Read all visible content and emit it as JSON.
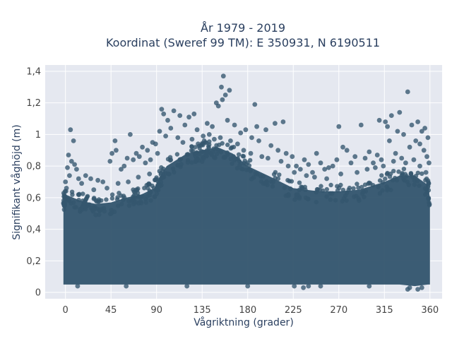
{
  "chart_data": {
    "type": "scatter",
    "title": "År 1979 - 2019",
    "subtitle": "Koordinat (Sweref 99 TM): E 350931, N 6190511",
    "xlabel": "Vågriktning (grader)",
    "ylabel": "Signifikant våghöjd (m)",
    "xlim": [
      -20,
      372
    ],
    "ylim": [
      -0.04,
      1.44
    ],
    "xticks": [
      0,
      45,
      90,
      135,
      180,
      225,
      270,
      315,
      360
    ],
    "xtick_labels": [
      "0",
      "45",
      "90",
      "135",
      "180",
      "225",
      "270",
      "315",
      "360"
    ],
    "yticks": [
      0,
      0.2,
      0.4,
      0.6,
      0.8,
      1,
      1.2,
      1.4
    ],
    "ytick_labels": [
      "0",
      "0,2",
      "0,4",
      "0,6",
      "0,8",
      "1",
      "1,2",
      "1,4"
    ],
    "grid": true,
    "legend": "none",
    "marker_color": "#34566e",
    "plot_background": "#e5e8f0",
    "dense_band": {
      "x": [
        -2,
        0,
        15,
        30,
        45,
        60,
        75,
        88,
        92,
        100,
        120,
        135,
        150,
        165,
        180,
        200,
        225,
        250,
        270,
        290,
        315,
        330,
        345,
        358,
        360
      ],
      "lower": [
        0.05,
        0.05,
        0.05,
        0.05,
        0.05,
        0.05,
        0.05,
        0.05,
        0.05,
        0.05,
        0.05,
        0.05,
        0.05,
        0.05,
        0.05,
        0.05,
        0.05,
        0.05,
        0.05,
        0.05,
        0.05,
        0.05,
        0.04,
        0.05,
        0.05
      ],
      "upper": [
        0.58,
        0.62,
        0.58,
        0.56,
        0.57,
        0.6,
        0.62,
        0.66,
        0.72,
        0.8,
        0.88,
        0.9,
        0.92,
        0.88,
        0.8,
        0.74,
        0.66,
        0.64,
        0.64,
        0.65,
        0.7,
        0.74,
        0.74,
        0.68,
        0.6
      ]
    },
    "points": [
      [
        156,
        1.37
      ],
      [
        154,
        1.3
      ],
      [
        162,
        1.28
      ],
      [
        158,
        1.25
      ],
      [
        155,
        1.22
      ],
      [
        149,
        1.2
      ],
      [
        151,
        1.18
      ],
      [
        187,
        1.19
      ],
      [
        338,
        1.27
      ],
      [
        330,
        1.14
      ],
      [
        322,
        1.12
      ],
      [
        348,
        1.08
      ],
      [
        342,
        1.06
      ],
      [
        352,
        1.02
      ],
      [
        355,
        1.04
      ],
      [
        358,
        0.98
      ],
      [
        310,
        1.09
      ],
      [
        316,
        1.08
      ],
      [
        318,
        1.05
      ],
      [
        292,
        1.06
      ],
      [
        270,
        1.05
      ],
      [
        328,
        1.02
      ],
      [
        334,
        1.0
      ],
      [
        320,
        0.96
      ],
      [
        107,
        1.15
      ],
      [
        113,
        1.12
      ],
      [
        95,
        1.16
      ],
      [
        97,
        1.13
      ],
      [
        122,
        1.11
      ],
      [
        127,
        1.13
      ],
      [
        118,
        1.06
      ],
      [
        104,
        1.04
      ],
      [
        101,
        1.09
      ],
      [
        130,
        1.03
      ],
      [
        140,
        1.07
      ],
      [
        145,
        1.05
      ],
      [
        160,
        1.09
      ],
      [
        167,
        1.06
      ],
      [
        173,
        1.01
      ],
      [
        178,
        1.03
      ],
      [
        184,
        0.98
      ],
      [
        189,
        1.05
      ],
      [
        198,
        1.03
      ],
      [
        207,
        1.07
      ],
      [
        215,
        1.08
      ],
      [
        191,
        0.96
      ],
      [
        203,
        0.93
      ],
      [
        210,
        0.9
      ],
      [
        218,
        0.88
      ],
      [
        5,
        1.03
      ],
      [
        8,
        0.96
      ],
      [
        3,
        0.87
      ],
      [
        6,
        0.83
      ],
      [
        9,
        0.81
      ],
      [
        2,
        0.79
      ],
      [
        11,
        0.78
      ],
      [
        4,
        0.74
      ],
      [
        13,
        0.72
      ],
      [
        20,
        0.74
      ],
      [
        25,
        0.72
      ],
      [
        32,
        0.71
      ],
      [
        37,
        0.7
      ],
      [
        44,
        0.83
      ],
      [
        46,
        0.88
      ],
      [
        49,
        0.96
      ],
      [
        50,
        0.9
      ],
      [
        55,
        0.78
      ],
      [
        58,
        0.8
      ],
      [
        61,
        0.85
      ],
      [
        64,
        1.0
      ],
      [
        67,
        0.84
      ],
      [
        70,
        0.88
      ],
      [
        73,
        0.86
      ],
      [
        76,
        0.92
      ],
      [
        79,
        0.82
      ],
      [
        81,
        0.9
      ],
      [
        84,
        0.84
      ],
      [
        86,
        0.95
      ],
      [
        89,
        0.94
      ],
      [
        91,
        0.88
      ],
      [
        93,
        1.02
      ],
      [
        99,
        0.99
      ],
      [
        111,
        0.98
      ],
      [
        136,
        0.99
      ],
      [
        142,
        1.0
      ],
      [
        224,
        0.86
      ],
      [
        228,
        0.8
      ],
      [
        232,
        0.78
      ],
      [
        236,
        0.84
      ],
      [
        240,
        0.81
      ],
      [
        244,
        0.76
      ],
      [
        248,
        0.88
      ],
      [
        252,
        0.82
      ],
      [
        256,
        0.78
      ],
      [
        260,
        0.79
      ],
      [
        264,
        0.8
      ],
      [
        268,
        0.84
      ],
      [
        274,
        0.92
      ],
      [
        278,
        0.9
      ],
      [
        282,
        0.82
      ],
      [
        286,
        0.86
      ],
      [
        296,
        0.85
      ],
      [
        300,
        0.89
      ],
      [
        304,
        0.82
      ],
      [
        308,
        0.87
      ],
      [
        312,
        0.84
      ],
      [
        326,
        0.88
      ],
      [
        340,
        0.92
      ],
      [
        346,
        0.96
      ],
      [
        350,
        0.94
      ],
      [
        354,
        0.9
      ],
      [
        357,
        0.86
      ],
      [
        359,
        0.82
      ],
      [
        0,
        0.7
      ],
      [
        1,
        0.66
      ],
      [
        16,
        0.69
      ],
      [
        28,
        0.65
      ],
      [
        41,
        0.66
      ],
      [
        52,
        0.69
      ],
      [
        62,
        0.7
      ],
      [
        72,
        0.73
      ],
      [
        83,
        0.75
      ],
      [
        116,
        0.95
      ],
      [
        125,
        0.97
      ],
      [
        131,
        0.94
      ],
      [
        137,
        0.96
      ],
      [
        147,
        0.97
      ],
      [
        153,
        0.98
      ],
      [
        163,
        0.96
      ],
      [
        170,
        0.94
      ],
      [
        176,
        0.9
      ],
      [
        183,
        0.88
      ],
      [
        194,
        0.86
      ],
      [
        200,
        0.85
      ],
      [
        213,
        0.83
      ],
      [
        220,
        0.8
      ],
      [
        226,
        0.76
      ],
      [
        238,
        0.74
      ],
      [
        246,
        0.73
      ],
      [
        258,
        0.72
      ],
      [
        272,
        0.75
      ],
      [
        288,
        0.76
      ],
      [
        298,
        0.78
      ],
      [
        306,
        0.79
      ],
      [
        314,
        0.8
      ],
      [
        324,
        0.83
      ],
      [
        332,
        0.85
      ],
      [
        336,
        0.82
      ],
      [
        344,
        0.84
      ],
      [
        350,
        0.8
      ],
      [
        356,
        0.76
      ],
      [
        235,
        0.03
      ],
      [
        226,
        0.04
      ],
      [
        240,
        0.04
      ],
      [
        252,
        0.04
      ],
      [
        340,
        0.03
      ],
      [
        348,
        0.02
      ],
      [
        338,
        0.02
      ],
      [
        352,
        0.03
      ],
      [
        12,
        0.04
      ],
      [
        60,
        0.04
      ],
      [
        120,
        0.04
      ],
      [
        180,
        0.04
      ],
      [
        300,
        0.04
      ]
    ]
  }
}
